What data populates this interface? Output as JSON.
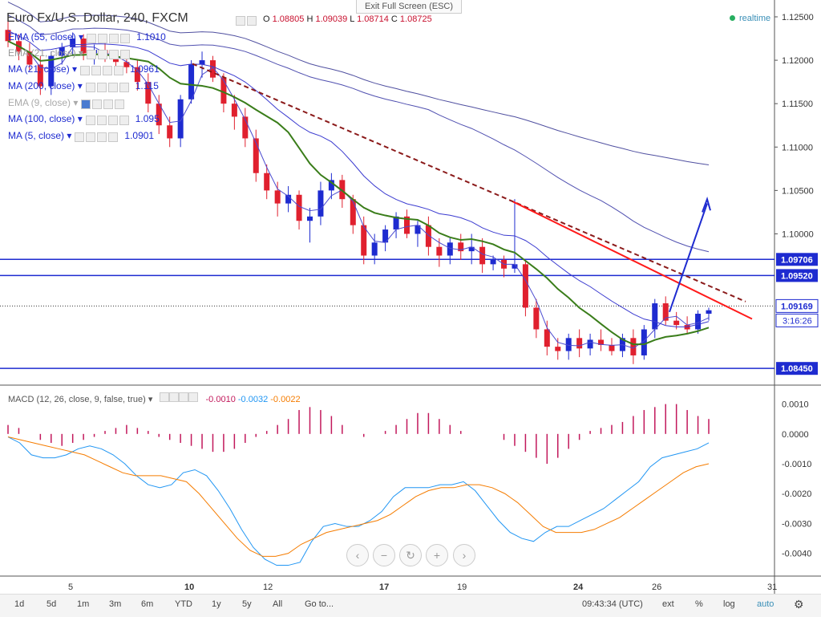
{
  "window": {
    "exit_fullscreen": "Exit Full Screen (ESC)",
    "realtime": "realtime"
  },
  "symbol": {
    "title": "Euro Fx/U.S. Dollar, 240, FXCM",
    "ohlc": {
      "o_label": "O",
      "o": "1.08805",
      "h_label": "H",
      "h": "1.09039",
      "l_label": "L",
      "l": "1.08714",
      "c_label": "C",
      "c": "1.08725"
    }
  },
  "indicators": [
    {
      "label": "EMA (55, close)",
      "value": "1.1010"
    },
    {
      "label": "EMA (21, close)",
      "value": ""
    },
    {
      "label": "MA (21, close)",
      "value": "1.0961"
    },
    {
      "label": "MA (200, close)",
      "value": "1.115"
    },
    {
      "label": "EMA (9, close)",
      "value": ""
    },
    {
      "label": "MA (100, close)",
      "value": "1.095"
    },
    {
      "label": "MA (5, close)",
      "value": "1.0901"
    }
  ],
  "macd": {
    "label": "MACD (12, 26, close, 9, false, true)",
    "hist": "-0.0010",
    "macd": "-0.0032",
    "signal": "-0.0022"
  },
  "bottom_bar": {
    "ranges": [
      "1d",
      "5d",
      "1m",
      "3m",
      "6m",
      "YTD",
      "1y",
      "5y",
      "All",
      "Go to..."
    ],
    "clock": "09:43:34 (UTC)",
    "right": [
      "ext",
      "%",
      "log",
      "auto"
    ]
  },
  "colors": {
    "up": "#1e2bd0",
    "down": "#e0202e",
    "sma_green": "#3a7d1a",
    "trend_red": "#ff1a1a",
    "trend_dash": "#8b1a1a",
    "macd": "#2196f3",
    "signal": "#f57c00",
    "hist": "#c2185b"
  },
  "chart_data": {
    "type": "candlestick",
    "symbol": "EURUSD",
    "timeframe": "240",
    "y_axis": {
      "ticks": [
        "1.12500",
        "1.12000",
        "1.11500",
        "1.11000",
        "1.10500",
        "1.10000",
        "1.09706",
        "1.09520",
        "1.09169",
        "1.08450"
      ],
      "range": [
        1.0835,
        1.1262
      ]
    },
    "x_axis": {
      "ticks": [
        "5",
        "10",
        "12",
        "17",
        "19",
        "24",
        "26",
        "31"
      ]
    },
    "horizontal_lines": [
      1.09706,
      1.0952,
      1.0845
    ],
    "price_line": 1.09169,
    "countdown": "3:16:26",
    "candles": [
      {
        "o": 1.1235,
        "h": 1.1245,
        "l": 1.1215,
        "c": 1.1222
      },
      {
        "o": 1.1222,
        "h": 1.123,
        "l": 1.12,
        "c": 1.121
      },
      {
        "o": 1.121,
        "h": 1.122,
        "l": 1.1188,
        "c": 1.1195
      },
      {
        "o": 1.1195,
        "h": 1.1205,
        "l": 1.116,
        "c": 1.117
      },
      {
        "o": 1.117,
        "h": 1.121,
        "l": 1.116,
        "c": 1.1205
      },
      {
        "o": 1.1205,
        "h": 1.122,
        "l": 1.1195,
        "c": 1.1215
      },
      {
        "o": 1.1215,
        "h": 1.1232,
        "l": 1.1205,
        "c": 1.1225
      },
      {
        "o": 1.1225,
        "h": 1.123,
        "l": 1.12,
        "c": 1.1208
      },
      {
        "o": 1.1208,
        "h": 1.1218,
        "l": 1.1195,
        "c": 1.1212
      },
      {
        "o": 1.1212,
        "h": 1.122,
        "l": 1.1198,
        "c": 1.1205
      },
      {
        "o": 1.1205,
        "h": 1.1212,
        "l": 1.119,
        "c": 1.1198
      },
      {
        "o": 1.1198,
        "h": 1.121,
        "l": 1.1185,
        "c": 1.1192
      },
      {
        "o": 1.1192,
        "h": 1.12,
        "l": 1.1165,
        "c": 1.1175
      },
      {
        "o": 1.1175,
        "h": 1.1185,
        "l": 1.114,
        "c": 1.115
      },
      {
        "o": 1.115,
        "h": 1.116,
        "l": 1.1115,
        "c": 1.1125
      },
      {
        "o": 1.1125,
        "h": 1.1135,
        "l": 1.11,
        "c": 1.111
      },
      {
        "o": 1.111,
        "h": 1.116,
        "l": 1.11,
        "c": 1.1155
      },
      {
        "o": 1.1155,
        "h": 1.12,
        "l": 1.115,
        "c": 1.1195
      },
      {
        "o": 1.1195,
        "h": 1.121,
        "l": 1.118,
        "c": 1.12
      },
      {
        "o": 1.12,
        "h": 1.1205,
        "l": 1.1175,
        "c": 1.118
      },
      {
        "o": 1.118,
        "h": 1.1185,
        "l": 1.114,
        "c": 1.115
      },
      {
        "o": 1.115,
        "h": 1.116,
        "l": 1.112,
        "c": 1.1135
      },
      {
        "o": 1.1135,
        "h": 1.1145,
        "l": 1.11,
        "c": 1.111
      },
      {
        "o": 1.111,
        "h": 1.112,
        "l": 1.106,
        "c": 1.107
      },
      {
        "o": 1.107,
        "h": 1.108,
        "l": 1.104,
        "c": 1.105
      },
      {
        "o": 1.105,
        "h": 1.106,
        "l": 1.102,
        "c": 1.1035
      },
      {
        "o": 1.1035,
        "h": 1.1055,
        "l": 1.1025,
        "c": 1.1045
      },
      {
        "o": 1.1045,
        "h": 1.105,
        "l": 1.1005,
        "c": 1.1015
      },
      {
        "o": 1.1015,
        "h": 1.103,
        "l": 1.099,
        "c": 1.102
      },
      {
        "o": 1.102,
        "h": 1.106,
        "l": 1.101,
        "c": 1.105
      },
      {
        "o": 1.105,
        "h": 1.107,
        "l": 1.104,
        "c": 1.1062
      },
      {
        "o": 1.1062,
        "h": 1.1068,
        "l": 1.103,
        "c": 1.104
      },
      {
        "o": 1.104,
        "h": 1.1045,
        "l": 1.1,
        "c": 1.101
      },
      {
        "o": 1.101,
        "h": 1.102,
        "l": 1.0965,
        "c": 1.0975
      },
      {
        "o": 1.0975,
        "h": 1.1,
        "l": 1.0965,
        "c": 1.099
      },
      {
        "o": 1.099,
        "h": 1.101,
        "l": 1.098,
        "c": 1.1005
      },
      {
        "o": 1.1005,
        "h": 1.1025,
        "l": 1.0995,
        "c": 1.102
      },
      {
        "o": 1.102,
        "h": 1.1028,
        "l": 1.0995,
        "c": 1.1
      },
      {
        "o": 1.1,
        "h": 1.1015,
        "l": 1.0985,
        "c": 1.101
      },
      {
        "o": 1.101,
        "h": 1.102,
        "l": 1.0975,
        "c": 1.0985
      },
      {
        "o": 1.0985,
        "h": 1.0995,
        "l": 1.0962,
        "c": 1.0975
      },
      {
        "o": 1.0975,
        "h": 1.0995,
        "l": 1.0965,
        "c": 1.099
      },
      {
        "o": 1.099,
        "h": 1.1,
        "l": 1.097,
        "c": 1.098
      },
      {
        "o": 1.098,
        "h": 1.1,
        "l": 1.0965,
        "c": 1.0985
      },
      {
        "o": 1.0985,
        "h": 1.0995,
        "l": 1.0955,
        "c": 1.0965
      },
      {
        "o": 1.0965,
        "h": 1.0975,
        "l": 1.0958,
        "c": 1.097
      },
      {
        "o": 1.097,
        "h": 1.0975,
        "l": 1.095,
        "c": 1.096
      },
      {
        "o": 1.096,
        "h": 1.104,
        "l": 1.0955,
        "c": 1.0965
      },
      {
        "o": 1.0965,
        "h": 1.097,
        "l": 1.0905,
        "c": 1.0915
      },
      {
        "o": 1.0915,
        "h": 1.0925,
        "l": 1.088,
        "c": 1.089
      },
      {
        "o": 1.089,
        "h": 1.09,
        "l": 1.086,
        "c": 1.087
      },
      {
        "o": 1.087,
        "h": 1.088,
        "l": 1.0855,
        "c": 1.0865
      },
      {
        "o": 1.0865,
        "h": 1.0885,
        "l": 1.0855,
        "c": 1.088
      },
      {
        "o": 1.088,
        "h": 1.089,
        "l": 1.0858,
        "c": 1.0868
      },
      {
        "o": 1.0868,
        "h": 1.0885,
        "l": 1.086,
        "c": 1.0878
      },
      {
        "o": 1.0878,
        "h": 1.089,
        "l": 1.0865,
        "c": 1.0872
      },
      {
        "o": 1.0872,
        "h": 1.088,
        "l": 1.086,
        "c": 1.0865
      },
      {
        "o": 1.0865,
        "h": 1.0885,
        "l": 1.0858,
        "c": 1.088
      },
      {
        "o": 1.088,
        "h": 1.089,
        "l": 1.085,
        "c": 1.086
      },
      {
        "o": 1.086,
        "h": 1.0895,
        "l": 1.0855,
        "c": 1.089
      },
      {
        "o": 1.089,
        "h": 1.0925,
        "l": 1.088,
        "c": 1.092
      },
      {
        "o": 1.092,
        "h": 1.0928,
        "l": 1.0895,
        "c": 1.09
      },
      {
        "o": 1.09,
        "h": 1.091,
        "l": 1.089,
        "c": 1.0895
      },
      {
        "o": 1.0895,
        "h": 1.0905,
        "l": 1.0885,
        "c": 1.089
      },
      {
        "o": 1.089,
        "h": 1.0912,
        "l": 1.0885,
        "c": 1.0908
      },
      {
        "o": 1.0908,
        "h": 1.0915,
        "l": 1.09,
        "c": 1.0912
      }
    ],
    "macd_axis": {
      "ticks": [
        "0.0010",
        "0.0000",
        "-0.0010",
        "-0.0020",
        "-0.0030",
        "-0.0040"
      ],
      "range": [
        -0.0046,
        0.0015
      ]
    },
    "macd_line": [
      -0.0001,
      -0.0003,
      -0.0007,
      -0.0008,
      -0.0008,
      -0.0007,
      -0.0005,
      -0.0004,
      -0.0005,
      -0.0007,
      -0.001,
      -0.0014,
      -0.0017,
      -0.0018,
      -0.0017,
      -0.0013,
      -0.0012,
      -0.0014,
      -0.0019,
      -0.0025,
      -0.0032,
      -0.0038,
      -0.0042,
      -0.0044,
      -0.0044,
      -0.0043,
      -0.0036,
      -0.0031,
      -0.003,
      -0.0031,
      -0.0031,
      -0.0029,
      -0.0026,
      -0.0021,
      -0.0018,
      -0.0018,
      -0.0018,
      -0.0017,
      -0.0017,
      -0.0016,
      -0.0019,
      -0.0024,
      -0.0029,
      -0.0033,
      -0.0035,
      -0.0036,
      -0.0033,
      -0.0031,
      -0.0031,
      -0.0029,
      -0.0027,
      -0.0025,
      -0.0022,
      -0.0019,
      -0.0016,
      -0.0011,
      -0.0008,
      -0.0007,
      -0.0006,
      -0.0005,
      -0.0003
    ],
    "signal_line": [
      -0.0001,
      -0.0002,
      -0.0003,
      -0.0004,
      -0.0005,
      -0.0006,
      -0.0007,
      -0.0009,
      -0.0011,
      -0.0013,
      -0.0014,
      -0.0014,
      -0.0014,
      -0.0015,
      -0.0016,
      -0.002,
      -0.0025,
      -0.003,
      -0.0035,
      -0.0039,
      -0.0041,
      -0.0041,
      -0.004,
      -0.0037,
      -0.0035,
      -0.0033,
      -0.0032,
      -0.0031,
      -0.003,
      -0.0029,
      -0.0027,
      -0.0024,
      -0.0021,
      -0.0019,
      -0.0018,
      -0.0018,
      -0.0017,
      -0.0017,
      -0.0018,
      -0.002,
      -0.0023,
      -0.0027,
      -0.0031,
      -0.0033,
      -0.0033,
      -0.0033,
      -0.0032,
      -0.003,
      -0.0028,
      -0.0025,
      -0.0022,
      -0.0019,
      -0.0016,
      -0.0013,
      -0.0011,
      -0.001
    ],
    "histogram": [
      0.0003,
      0.0002,
      0.0,
      -0.0002,
      -0.0003,
      -0.0004,
      -0.0003,
      -0.0002,
      -0.0001,
      0.0001,
      0.0002,
      0.0003,
      0.0002,
      0.0001,
      -0.0001,
      -0.0002,
      -0.0003,
      -0.0004,
      -0.0005,
      -0.0006,
      -0.0006,
      -0.0005,
      -0.0003,
      -0.0001,
      0.0001,
      0.0003,
      0.0005,
      0.0008,
      0.0009,
      0.0008,
      0.0006,
      0.0003,
      0.0,
      -0.0001,
      0.0,
      0.0001,
      0.0003,
      0.0005,
      0.0007,
      0.0007,
      0.0005,
      0.0003,
      0.0001,
      0.0,
      0.0,
      0.0,
      -0.0002,
      -0.0004,
      -0.0006,
      -0.0008,
      -0.001,
      -0.0008,
      -0.0005,
      -0.0002,
      0.0001,
      0.0002,
      0.0003,
      0.0004,
      0.0006,
      0.0008,
      0.0009,
      0.001,
      0.001,
      0.0008,
      0.0006,
      0.0005
    ]
  }
}
